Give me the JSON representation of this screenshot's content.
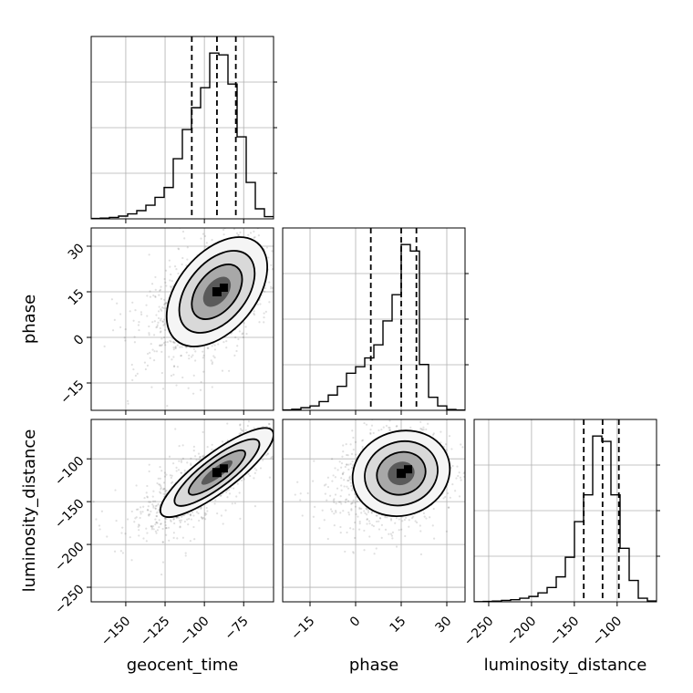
{
  "chart_data": {
    "type": "corner",
    "parameters": [
      "geocent_time",
      "phase",
      "luminosity_distance"
    ],
    "axis_ranges": {
      "geocent_time": [
        -172,
        -56
      ],
      "phase": [
        -24,
        36
      ],
      "luminosity_distance": [
        -267,
        -54
      ]
    },
    "ticks": {
      "geocent_time": {
        "values": [
          -150,
          -125,
          -100,
          -75
        ],
        "labels": [
          "−150",
          "−125",
          "−100",
          "−75"
        ]
      },
      "phase": {
        "values": [
          -15,
          0,
          15,
          30
        ],
        "labels": [
          "−15",
          "0",
          "15",
          "30"
        ]
      },
      "luminosity_distance": {
        "values": [
          -250,
          -200,
          -150,
          -100
        ],
        "labels": [
          "−250",
          "−200",
          "−150",
          "−100"
        ]
      }
    },
    "xlabels": [
      "geocent_time",
      "phase",
      "luminosity_distance"
    ],
    "ylabels": [
      "",
      "phase",
      "luminosity_distance"
    ],
    "grid": true,
    "quantiles": {
      "geocent_time": [
        -108,
        -92,
        -80
      ],
      "phase": [
        5,
        15,
        20
      ],
      "luminosity_distance": [
        -139,
        -117,
        -98
      ]
    },
    "marginals": {
      "geocent_time": {
        "bin_edges": [
          -172,
          -166.2,
          -160.4,
          -154.6,
          -148.8,
          -143,
          -137.2,
          -131.4,
          -125.6,
          -119.8,
          -114,
          -108.2,
          -102.4,
          -96.6,
          -90.8,
          -85,
          -79.2,
          -73.4,
          -67.6,
          -61.8,
          -56
        ],
        "counts": [
          0.002,
          0.004,
          0.008,
          0.015,
          0.027,
          0.045,
          0.075,
          0.118,
          0.172,
          0.33,
          0.49,
          0.61,
          0.72,
          0.91,
          0.9,
          0.74,
          0.45,
          0.2,
          0.055,
          0.012
        ]
      },
      "phase": {
        "bin_edges": [
          -24,
          -21,
          -18,
          -15,
          -12,
          -9,
          -6,
          -3,
          0,
          3,
          6,
          9,
          12,
          15,
          18,
          21,
          24,
          27,
          30,
          33,
          36
        ],
        "counts": [
          0.002,
          0.005,
          0.012,
          0.02,
          0.04,
          0.07,
          0.11,
          0.17,
          0.2,
          0.24,
          0.3,
          0.41,
          0.53,
          0.76,
          0.73,
          0.21,
          0.06,
          0.02,
          0.004,
          0.001
        ]
      },
      "luminosity_distance": {
        "bin_edges": [
          -267,
          -256.35,
          -245.7,
          -235.05,
          -224.4,
          -213.75,
          -203.1,
          -192.45,
          -181.8,
          -171.15,
          -160.5,
          -149.85,
          -139.2,
          -128.55,
          -117.9,
          -107.25,
          -96.6,
          -85.95,
          -75.3,
          -64.65,
          -54
        ],
        "counts": [
          0.001,
          0.002,
          0.004,
          0.008,
          0.012,
          0.02,
          0.03,
          0.05,
          0.08,
          0.14,
          0.25,
          0.45,
          0.6,
          0.93,
          0.9,
          0.6,
          0.3,
          0.12,
          0.02,
          0.005
        ]
      }
    },
    "joint": [
      {
        "x": "geocent_time",
        "y": "phase",
        "mean": [
          -92,
          15
        ],
        "sd": [
          16,
          9
        ],
        "rho": 0.45
      },
      {
        "x": "geocent_time",
        "y": "luminosity_distance",
        "mean": [
          -92,
          -116
        ],
        "sd": [
          18,
          26
        ],
        "rho": 0.85
      },
      {
        "x": "phase",
        "y": "luminosity_distance",
        "mean": [
          15,
          -117
        ],
        "sd": [
          8,
          25
        ],
        "rho": 0.1
      }
    ]
  }
}
